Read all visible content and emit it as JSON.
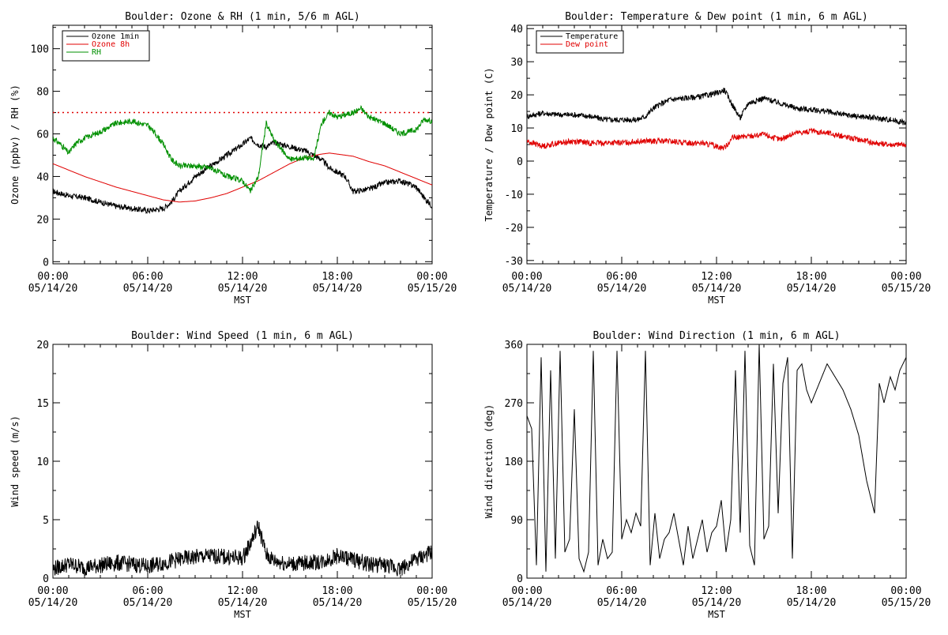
{
  "chart_data": [
    {
      "type": "line",
      "title": "Boulder: Ozone & RH (1 min, 5/6 m AGL)",
      "ylabel": "Ozone (ppbv) / RH (%)",
      "xlabel": "MST",
      "xlim": [
        "05/14/20 00:00",
        "05/15/20 00:00"
      ],
      "x_ticks": [
        {
          "time": "00:00",
          "date": "05/14/20"
        },
        {
          "time": "06:00",
          "date": "05/14/20"
        },
        {
          "time": "12:00",
          "date": "05/14/20"
        },
        {
          "time": "18:00",
          "date": "05/14/20"
        },
        {
          "time": "00:00",
          "date": "05/15/20"
        }
      ],
      "ylim": [
        -1,
        111
      ],
      "y_ticks": [
        0,
        20,
        40,
        60,
        80,
        100
      ],
      "legend": "top-left",
      "reference_line": {
        "value": 70,
        "color": "#e00000",
        "style": "dotted"
      },
      "series": [
        {
          "name": "Ozone 1min",
          "color": "#000000",
          "x": [
            0,
            1,
            2,
            3,
            4,
            5,
            6,
            7,
            7.5,
            8,
            9,
            10,
            11,
            12,
            12.5,
            13,
            13.5,
            14,
            15,
            16,
            16.5,
            17,
            17.5,
            18,
            18.5,
            19,
            20,
            21,
            22,
            23,
            23.5,
            24
          ],
          "values": [
            33,
            31,
            30,
            28,
            26,
            25,
            24,
            25,
            28,
            33,
            40,
            45,
            50,
            55,
            58,
            55,
            54,
            56,
            54,
            52,
            50,
            48,
            44,
            42,
            40,
            33,
            34,
            37,
            38,
            35,
            30,
            26
          ]
        },
        {
          "name": "Ozone 8h",
          "color": "#e00000",
          "x": [
            0,
            2,
            4,
            6,
            7,
            8,
            9,
            10,
            11,
            12,
            13,
            14,
            15,
            16,
            17,
            17.5,
            18,
            19,
            20,
            21,
            22,
            23,
            24
          ],
          "values": [
            46,
            40,
            35,
            31,
            29,
            28,
            28.5,
            30,
            32,
            35,
            38,
            42,
            46,
            49,
            50.5,
            51,
            50.5,
            49.5,
            47,
            45,
            42,
            39,
            36
          ]
        },
        {
          "name": "RH",
          "color": "#009000",
          "x": [
            0,
            0.5,
            1,
            1.5,
            2,
            3,
            4,
            5,
            6,
            6.5,
            7,
            7.5,
            8,
            9,
            10,
            11,
            12,
            12.5,
            13,
            13.5,
            14,
            15,
            16,
            16.5,
            17,
            17.5,
            18,
            19,
            19.5,
            20,
            21,
            22,
            23,
            23.5,
            24
          ],
          "values": [
            58,
            55,
            51,
            56,
            58,
            61,
            65,
            66,
            64,
            60,
            55,
            48,
            45,
            45,
            44,
            40,
            38,
            33,
            40,
            65,
            57,
            48,
            49,
            48,
            65,
            70,
            68,
            70,
            72,
            68,
            65,
            60,
            62,
            67,
            66
          ]
        }
      ]
    },
    {
      "type": "line",
      "title": "Boulder: Temperature & Dew point (1 min, 6 m AGL)",
      "ylabel": "Temperature / Dew point (C)",
      "xlabel": "MST",
      "xlim": [
        "05/14/20 00:00",
        "05/15/20 00:00"
      ],
      "x_ticks": [
        {
          "time": "00:00",
          "date": "05/14/20"
        },
        {
          "time": "06:00",
          "date": "05/14/20"
        },
        {
          "time": "12:00",
          "date": "05/14/20"
        },
        {
          "time": "18:00",
          "date": "05/14/20"
        },
        {
          "time": "00:00",
          "date": "05/15/20"
        }
      ],
      "ylim": [
        -31,
        41
      ],
      "y_ticks": [
        -30,
        -20,
        -10,
        0,
        10,
        20,
        30,
        40
      ],
      "legend": "top-left",
      "series": [
        {
          "name": "Temperature",
          "color": "#000000",
          "x": [
            0,
            1,
            2,
            3,
            4,
            5,
            6,
            7,
            7.5,
            8,
            9,
            10,
            11,
            12,
            12.5,
            13,
            13.5,
            14,
            15,
            16,
            17,
            18,
            19,
            20,
            21,
            22,
            23,
            24
          ],
          "values": [
            13.5,
            14.5,
            14,
            14,
            13.5,
            12.5,
            12.5,
            12.5,
            13.5,
            16,
            18.5,
            19,
            19.5,
            20.5,
            21.5,
            17,
            13,
            17.5,
            19,
            17.5,
            16,
            15.5,
            15,
            14,
            13.5,
            13,
            12.5,
            11.5
          ]
        },
        {
          "name": "Dew point",
          "color": "#e00000",
          "x": [
            0,
            1,
            2,
            3,
            4,
            5,
            6,
            7,
            8,
            9,
            10,
            11,
            12,
            12.5,
            13,
            14,
            15,
            16,
            17,
            18,
            19,
            20,
            21,
            22,
            23,
            24
          ],
          "values": [
            6,
            4.5,
            5.5,
            6,
            5.5,
            5.5,
            5.5,
            6,
            6,
            6,
            5.5,
            5.5,
            4.5,
            4,
            7,
            7.5,
            8,
            6.5,
            8.5,
            9,
            8.5,
            7.5,
            6.5,
            5.5,
            5,
            5
          ]
        }
      ]
    },
    {
      "type": "line",
      "title": "Boulder: Wind Speed (1 min, 6 m AGL)",
      "ylabel": "Wind speed (m/s)",
      "xlabel": "MST",
      "xlim": [
        "05/14/20 00:00",
        "05/15/20 00:00"
      ],
      "x_ticks": [
        {
          "time": "00:00",
          "date": "05/14/20"
        },
        {
          "time": "06:00",
          "date": "05/14/20"
        },
        {
          "time": "12:00",
          "date": "05/14/20"
        },
        {
          "time": "18:00",
          "date": "05/14/20"
        },
        {
          "time": "00:00",
          "date": "05/15/20"
        }
      ],
      "ylim": [
        0,
        20
      ],
      "y_ticks": [
        0,
        5,
        10,
        15,
        20
      ],
      "series": [
        {
          "name": "",
          "color": "#000000",
          "x": [
            0,
            1,
            2,
            3,
            4,
            5,
            6,
            7,
            8,
            9,
            10,
            11,
            12,
            12.5,
            13,
            13.5,
            14,
            15,
            16,
            17,
            18,
            19,
            20,
            21,
            22,
            23,
            24
          ],
          "values": [
            0.8,
            1.2,
            0.9,
            1.1,
            1.3,
            1.2,
            1,
            1.3,
            1.6,
            1.8,
            1.9,
            1.8,
            1.7,
            3,
            4.5,
            2,
            1.5,
            1.2,
            1.3,
            1.4,
            1.9,
            1.6,
            1.2,
            1.1,
            0.8,
            1.6,
            2.2
          ]
        }
      ]
    },
    {
      "type": "line",
      "title": "Boulder: Wind Direction (1 min, 6 m AGL)",
      "ylabel": "Wind direction (deg)",
      "xlabel": "MST",
      "xlim": [
        "05/14/20 00:00",
        "05/15/20 00:00"
      ],
      "x_ticks": [
        {
          "time": "00:00",
          "date": "05/14/20"
        },
        {
          "time": "06:00",
          "date": "05/14/20"
        },
        {
          "time": "12:00",
          "date": "05/14/20"
        },
        {
          "time": "18:00",
          "date": "05/14/20"
        },
        {
          "time": "00:00",
          "date": "05/15/20"
        }
      ],
      "ylim": [
        0,
        360
      ],
      "y_ticks": [
        0,
        90,
        180,
        270,
        360
      ],
      "series": [
        {
          "name": "",
          "color": "#000000",
          "x": [
            0,
            0.3,
            0.6,
            0.9,
            1.2,
            1.5,
            1.8,
            2.1,
            2.4,
            2.7,
            3,
            3.3,
            3.6,
            3.9,
            4.2,
            4.5,
            4.8,
            5.1,
            5.4,
            5.7,
            6,
            6.3,
            6.6,
            6.9,
            7.2,
            7.5,
            7.8,
            8.1,
            8.4,
            8.7,
            9,
            9.3,
            9.6,
            9.9,
            10.2,
            10.5,
            10.8,
            11.1,
            11.4,
            11.7,
            12,
            12.3,
            12.6,
            12.9,
            13.2,
            13.5,
            13.8,
            14.1,
            14.4,
            14.7,
            15,
            15.3,
            15.6,
            15.9,
            16.2,
            16.5,
            16.8,
            17.1,
            17.4,
            17.7,
            18,
            18.5,
            19,
            19.5,
            20,
            20.5,
            21,
            21.5,
            22,
            22.3,
            22.6,
            23,
            23.3,
            23.6,
            24
          ],
          "values": [
            250,
            230,
            20,
            340,
            10,
            320,
            30,
            350,
            40,
            60,
            260,
            30,
            10,
            40,
            350,
            20,
            60,
            30,
            40,
            350,
            60,
            90,
            70,
            100,
            80,
            350,
            20,
            100,
            30,
            60,
            70,
            100,
            60,
            20,
            80,
            30,
            60,
            90,
            40,
            70,
            80,
            120,
            40,
            90,
            320,
            70,
            350,
            50,
            20,
            360,
            60,
            80,
            330,
            100,
            300,
            340,
            30,
            320,
            330,
            290,
            270,
            300,
            330,
            310,
            290,
            260,
            220,
            150,
            100,
            300,
            270,
            310,
            290,
            320,
            340
          ]
        }
      ]
    }
  ]
}
